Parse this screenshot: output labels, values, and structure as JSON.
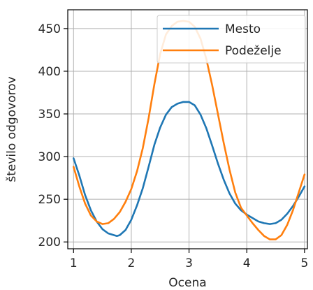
{
  "chart_data": {
    "type": "line",
    "title": "",
    "xlabel": "Ocena",
    "ylabel": "število odgovorov",
    "xlim": [
      0.9,
      5.05
    ],
    "ylim": [
      192,
      472
    ],
    "xticks": [
      1,
      2,
      3,
      4,
      5
    ],
    "yticks": [
      200,
      250,
      300,
      350,
      400,
      450
    ],
    "grid": true,
    "legend_position": "top-right",
    "series": [
      {
        "name": "Mesto",
        "color": "#1f77b4",
        "x": [
          1.0,
          1.1,
          1.2,
          1.3,
          1.4,
          1.5,
          1.6,
          1.7,
          1.75,
          1.8,
          1.9,
          2.0,
          2.1,
          2.2,
          2.3,
          2.4,
          2.5,
          2.6,
          2.7,
          2.8,
          2.9,
          3.0,
          3.1,
          3.2,
          3.3,
          3.4,
          3.5,
          3.6,
          3.7,
          3.8,
          3.9,
          4.0,
          4.1,
          4.2,
          4.3,
          4.4,
          4.5,
          4.6,
          4.7,
          4.8,
          4.9,
          5.0
        ],
        "y": [
          298,
          278,
          255,
          237,
          224,
          215,
          210,
          208,
          207,
          208,
          214,
          226,
          243,
          263,
          288,
          314,
          334,
          349,
          358,
          362,
          364,
          364,
          360,
          349,
          333,
          313,
          292,
          273,
          257,
          245,
          237,
          232,
          228,
          224,
          222,
          221,
          222,
          226,
          233,
          242,
          253,
          265
        ]
      },
      {
        "name": "Podeželje",
        "color": "#ff7f0e",
        "x": [
          1.0,
          1.1,
          1.2,
          1.3,
          1.4,
          1.5,
          1.6,
          1.7,
          1.8,
          1.9,
          2.0,
          2.1,
          2.2,
          2.3,
          2.4,
          2.5,
          2.6,
          2.7,
          2.8,
          2.9,
          3.0,
          3.1,
          3.2,
          3.3,
          3.4,
          3.5,
          3.6,
          3.7,
          3.8,
          3.9,
          4.0,
          4.1,
          4.2,
          4.3,
          4.4,
          4.5,
          4.6,
          4.7,
          4.8,
          4.9,
          5.0
        ],
        "y": [
          288,
          265,
          245,
          231,
          224,
          221,
          222,
          227,
          235,
          247,
          262,
          283,
          310,
          345,
          385,
          420,
          443,
          453,
          458,
          459,
          458,
          452,
          438,
          414,
          384,
          350,
          316,
          285,
          258,
          240,
          231,
          222,
          214,
          207,
          203,
          203,
          208,
          220,
          237,
          258,
          279
        ]
      }
    ]
  }
}
